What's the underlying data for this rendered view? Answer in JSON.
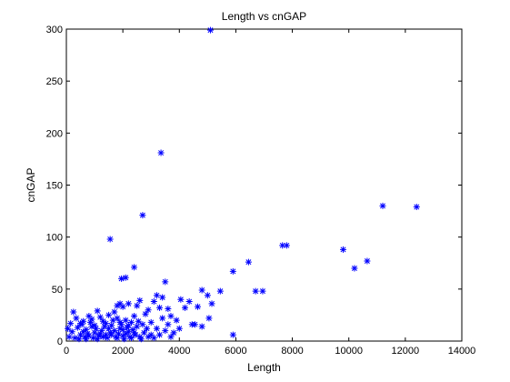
{
  "chart_data": {
    "type": "scatter",
    "title": "Length vs cnGAP",
    "xlabel": "Length",
    "ylabel": "cnGAP",
    "xlim": [
      0,
      14000
    ],
    "ylim": [
      0,
      300
    ],
    "xticks": [
      0,
      2000,
      4000,
      6000,
      8000,
      10000,
      12000,
      14000
    ],
    "yticks": [
      0,
      50,
      100,
      150,
      200,
      250,
      300
    ],
    "grid": false,
    "legend": "none",
    "marker": "asterisk",
    "marker_color": "#0000ff",
    "series": [
      {
        "points": [
          [
            5100,
            299
          ],
          [
            3350,
            181
          ],
          [
            2700,
            121
          ],
          [
            1550,
            98
          ],
          [
            2400,
            71
          ],
          [
            3500,
            57
          ],
          [
            1950,
            60
          ],
          [
            2100,
            61
          ],
          [
            11200,
            130
          ],
          [
            12400,
            129
          ],
          [
            7650,
            92
          ],
          [
            7800,
            92
          ],
          [
            9800,
            88
          ],
          [
            10650,
            77
          ],
          [
            10200,
            70
          ],
          [
            6450,
            76
          ],
          [
            5900,
            67
          ],
          [
            6700,
            48
          ],
          [
            6950,
            48
          ],
          [
            5450,
            48
          ],
          [
            5000,
            44
          ],
          [
            5150,
            36
          ],
          [
            4800,
            49
          ],
          [
            4050,
            40
          ],
          [
            4350,
            38
          ],
          [
            4200,
            32
          ],
          [
            4650,
            33
          ],
          [
            4550,
            16
          ],
          [
            4450,
            16
          ],
          [
            4800,
            14
          ],
          [
            3900,
            20
          ],
          [
            3700,
            24
          ],
          [
            3300,
            32
          ],
          [
            3600,
            31
          ],
          [
            3200,
            44
          ],
          [
            3100,
            38
          ],
          [
            3400,
            42
          ],
          [
            5900,
            6
          ],
          [
            5050,
            22
          ],
          [
            2900,
            30
          ],
          [
            2600,
            39
          ],
          [
            2800,
            26
          ],
          [
            2500,
            34
          ],
          [
            2200,
            36
          ],
          [
            2000,
            33
          ],
          [
            1800,
            34
          ],
          [
            1900,
            36
          ],
          [
            3000,
            18
          ],
          [
            3200,
            12
          ],
          [
            3400,
            22
          ],
          [
            3500,
            10
          ],
          [
            3600,
            16
          ],
          [
            3800,
            8
          ],
          [
            3300,
            6
          ],
          [
            3700,
            4
          ],
          [
            4000,
            12
          ],
          [
            2700,
            16
          ],
          [
            2750,
            8
          ],
          [
            2600,
            4
          ],
          [
            2900,
            4
          ],
          [
            3000,
            6
          ],
          [
            3100,
            3
          ],
          [
            2400,
            24
          ],
          [
            2300,
            18
          ],
          [
            2500,
            14
          ],
          [
            2200,
            9
          ],
          [
            2100,
            20
          ],
          [
            2000,
            5
          ],
          [
            1900,
            12
          ],
          [
            1800,
            22
          ],
          [
            1700,
            28
          ],
          [
            1600,
            15
          ],
          [
            1500,
            25
          ],
          [
            1400,
            6
          ],
          [
            1300,
            19
          ],
          [
            1200,
            23
          ],
          [
            1100,
            29
          ],
          [
            1000,
            8
          ],
          [
            900,
            14
          ],
          [
            800,
            24
          ],
          [
            700,
            11
          ],
          [
            600,
            19
          ],
          [
            500,
            6
          ],
          [
            400,
            13
          ],
          [
            300,
            3
          ],
          [
            250,
            28
          ],
          [
            200,
            9
          ],
          [
            150,
            17
          ],
          [
            100,
            4
          ],
          [
            50,
            12
          ],
          [
            350,
            22
          ],
          [
            450,
            2
          ],
          [
            550,
            16
          ],
          [
            650,
            4
          ],
          [
            750,
            7
          ],
          [
            850,
            18
          ],
          [
            950,
            3
          ],
          [
            1050,
            12
          ],
          [
            1150,
            5
          ],
          [
            1250,
            10
          ],
          [
            1350,
            14
          ],
          [
            1450,
            3
          ],
          [
            1550,
            8
          ],
          [
            1650,
            20
          ],
          [
            1750,
            4
          ],
          [
            1850,
            7
          ],
          [
            1950,
            16
          ],
          [
            2050,
            2
          ],
          [
            2150,
            13
          ],
          [
            2250,
            4
          ],
          [
            2350,
            11
          ],
          [
            2450,
            6
          ],
          [
            2550,
            19
          ],
          [
            2650,
            2
          ],
          [
            2850,
            12
          ],
          [
            1000,
            15
          ],
          [
            1100,
            2
          ],
          [
            1200,
            7
          ],
          [
            1300,
            4
          ],
          [
            1400,
            17
          ],
          [
            600,
            9
          ],
          [
            700,
            2
          ],
          [
            800,
            5
          ],
          [
            900,
            21
          ],
          [
            500,
            17
          ],
          [
            1500,
            12
          ],
          [
            1600,
            6
          ],
          [
            1700,
            10
          ],
          [
            1800,
            3
          ],
          [
            1900,
            18
          ],
          [
            2000,
            11
          ],
          [
            2100,
            7
          ],
          [
            2200,
            15
          ],
          [
            2300,
            3
          ],
          [
            2400,
            8
          ]
        ]
      }
    ]
  }
}
